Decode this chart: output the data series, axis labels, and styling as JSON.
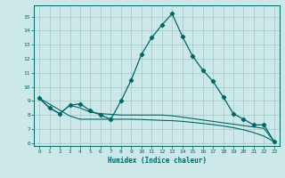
{
  "xlabel": "Humidex (Indice chaleur)",
  "bg_color": "#cce8e8",
  "grid_color": "#aacccc",
  "line_color": "#006666",
  "xlim": [
    -0.5,
    23.5
  ],
  "ylim": [
    5.8,
    15.8
  ],
  "yticks": [
    6,
    7,
    8,
    9,
    10,
    11,
    12,
    13,
    14,
    15
  ],
  "xticks": [
    0,
    1,
    2,
    3,
    4,
    5,
    6,
    7,
    8,
    9,
    10,
    11,
    12,
    13,
    14,
    15,
    16,
    17,
    18,
    19,
    20,
    21,
    22,
    23
  ],
  "line1_x": [
    0,
    1,
    2,
    3,
    4,
    5,
    6,
    7,
    8,
    9,
    10,
    11,
    12,
    13,
    14,
    15,
    16,
    17,
    18,
    19,
    20,
    21,
    22,
    23
  ],
  "line1_y": [
    9.2,
    8.5,
    8.1,
    8.7,
    8.8,
    8.3,
    8.0,
    7.7,
    9.0,
    10.5,
    12.3,
    13.5,
    14.4,
    15.2,
    13.6,
    12.2,
    11.2,
    10.4,
    9.3,
    8.1,
    7.7,
    7.3,
    7.3,
    6.1
  ],
  "line2_x": [
    0,
    1,
    2,
    3,
    4,
    5,
    6,
    7,
    8,
    9,
    10,
    11,
    12,
    13,
    14,
    15,
    16,
    17,
    18,
    19,
    20,
    21,
    22,
    23
  ],
  "line2_y": [
    9.2,
    8.5,
    8.1,
    8.7,
    8.5,
    8.2,
    8.1,
    8.05,
    8.0,
    8.0,
    8.0,
    8.0,
    8.0,
    7.95,
    7.85,
    7.75,
    7.65,
    7.55,
    7.45,
    7.35,
    7.25,
    7.15,
    7.05,
    6.1
  ],
  "line3_x": [
    0,
    1,
    2,
    3,
    4,
    5,
    6,
    7,
    8,
    9,
    10,
    11,
    12,
    13,
    14,
    15,
    16,
    17,
    18,
    19,
    20,
    21,
    22,
    23
  ],
  "line3_y": [
    9.2,
    8.78,
    8.35,
    7.93,
    7.7,
    7.7,
    7.7,
    7.7,
    7.7,
    7.7,
    7.68,
    7.65,
    7.62,
    7.6,
    7.55,
    7.48,
    7.4,
    7.32,
    7.22,
    7.1,
    6.95,
    6.75,
    6.5,
    6.1
  ]
}
